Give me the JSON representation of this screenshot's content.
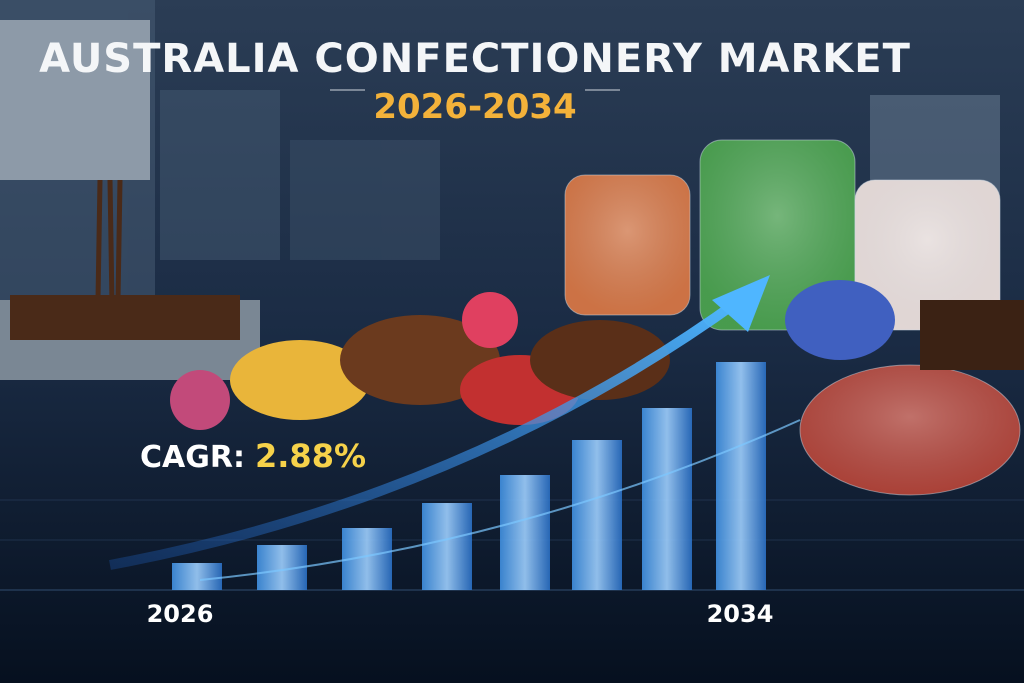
{
  "header": {
    "title": "AUSTRALIA CONFECTIONERY MARKET",
    "subtitle": "2026-2034"
  },
  "cagr": {
    "label": "CAGR:",
    "value": "2.88%"
  },
  "timeline": {
    "start": "2026",
    "end": "2034"
  }
}
